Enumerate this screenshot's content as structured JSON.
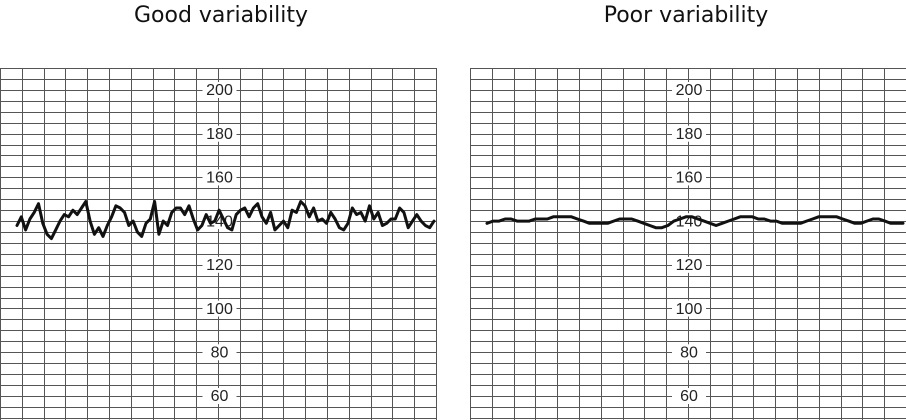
{
  "chart_data": [
    {
      "type": "line",
      "title": "Good variability",
      "xlabel": "",
      "ylabel": "",
      "ylim": [
        50,
        220
      ],
      "y_ticks": [
        "200",
        "180",
        "160",
        "140",
        "120",
        "100",
        "80",
        "60"
      ],
      "grid": true,
      "series": [
        {
          "values": [
            138,
            142,
            136,
            141,
            144,
            148,
            139,
            134,
            132,
            136,
            140,
            143,
            142,
            145,
            143,
            146,
            149,
            140,
            134,
            137,
            133,
            138,
            142,
            147,
            146,
            144,
            138,
            140,
            135,
            133,
            139,
            141,
            149,
            134,
            140,
            138,
            144,
            146,
            146,
            143,
            147,
            141,
            136,
            138,
            143,
            139,
            140,
            145,
            141,
            137,
            136,
            143,
            145,
            146,
            142,
            146,
            148,
            142,
            139,
            144,
            136,
            138,
            140,
            137,
            145,
            144,
            149,
            147,
            142,
            146,
            140,
            141,
            139,
            144,
            141,
            137,
            136,
            139,
            146,
            143,
            144,
            140,
            147,
            141,
            144,
            138,
            139,
            141,
            141,
            146,
            144,
            137,
            140,
            143,
            140,
            138,
            137,
            140
          ]
        }
      ]
    },
    {
      "type": "line",
      "title": "Poor variability",
      "xlabel": "",
      "ylabel": "",
      "ylim": [
        50,
        220
      ],
      "y_ticks": [
        "200",
        "180",
        "160",
        "140",
        "120",
        "100",
        "80",
        "60"
      ],
      "grid": true,
      "series": [
        {
          "values": [
            139,
            140,
            140,
            141,
            141,
            140,
            140,
            140,
            141,
            141,
            141,
            142,
            142,
            142,
            142,
            141,
            140,
            139,
            139,
            139,
            139,
            140,
            141,
            141,
            141,
            140,
            139,
            138,
            137,
            137,
            138,
            140,
            141,
            142,
            142,
            141,
            140,
            139,
            138,
            139,
            140,
            141,
            142,
            142,
            142,
            141,
            141,
            140,
            140,
            139,
            139,
            139,
            139,
            140,
            141,
            142,
            142,
            142,
            142,
            141,
            140,
            139,
            139,
            140,
            141,
            141,
            140,
            139,
            139,
            139
          ]
        }
      ]
    }
  ],
  "colors": {
    "grid": "#555555",
    "trace": "#111111",
    "background": "#ffffff"
  }
}
